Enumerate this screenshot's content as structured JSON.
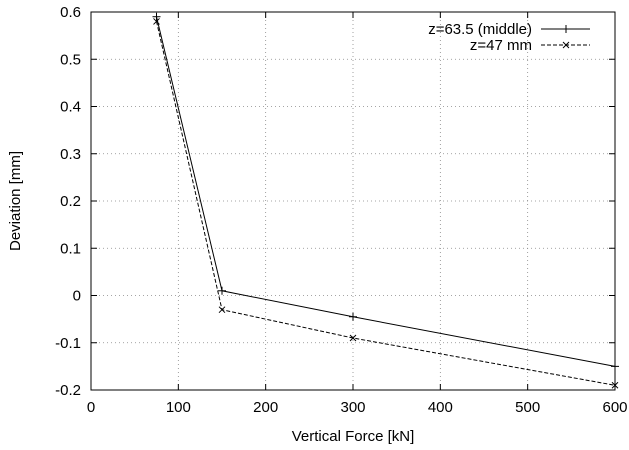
{
  "chart_data": {
    "type": "line",
    "title": "",
    "xlabel": "Vertical Force [kN]",
    "ylabel": "Deviation [mm]",
    "xlim": [
      0,
      600
    ],
    "ylim": [
      -0.2,
      0.6
    ],
    "xticks": [
      0,
      100,
      200,
      300,
      400,
      500,
      600
    ],
    "yticks": [
      -0.2,
      -0.1,
      0,
      0.1,
      0.2,
      0.3,
      0.4,
      0.5,
      0.6
    ],
    "xtick_labels": [
      "0",
      "100",
      "200",
      "300",
      "400",
      "500",
      "600"
    ],
    "ytick_labels": [
      "-0.2",
      "-0.1",
      "0",
      "0.1",
      "0.2",
      "0.3",
      "0.4",
      "0.5",
      "0.6"
    ],
    "grid": true,
    "legend_position": "top-right",
    "series": [
      {
        "name": "z=63.5 (middle)",
        "marker": "plus",
        "line": "solid",
        "x": [
          75,
          150,
          300,
          600
        ],
        "y": [
          0.59,
          0.01,
          -0.045,
          -0.15
        ]
      },
      {
        "name": "z=47 mm",
        "marker": "cross",
        "line": "dashed",
        "x": [
          75,
          150,
          300,
          600
        ],
        "y": [
          0.58,
          -0.03,
          -0.09,
          -0.19
        ]
      }
    ]
  }
}
